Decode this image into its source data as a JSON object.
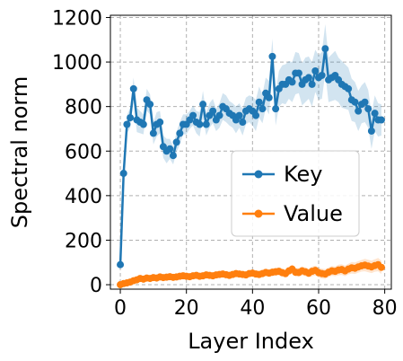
{
  "chart_data": {
    "type": "line",
    "title": "",
    "xlabel": "Layer Index",
    "ylabel": "Spectral norm",
    "xlim": [
      -3,
      82
    ],
    "ylim": [
      -20,
      1210
    ],
    "xticks": [
      0,
      20,
      40,
      60,
      80
    ],
    "yticks": [
      0,
      200,
      400,
      600,
      800,
      1000,
      1200
    ],
    "grid": true,
    "legend_position": "center-right",
    "x": [
      0,
      1,
      2,
      3,
      4,
      5,
      6,
      7,
      8,
      9,
      10,
      11,
      12,
      13,
      14,
      15,
      16,
      17,
      18,
      19,
      20,
      21,
      22,
      23,
      24,
      25,
      26,
      27,
      28,
      29,
      30,
      31,
      32,
      33,
      34,
      35,
      36,
      37,
      38,
      39,
      40,
      41,
      42,
      43,
      44,
      45,
      46,
      47,
      48,
      49,
      50,
      51,
      52,
      53,
      54,
      55,
      56,
      57,
      58,
      59,
      60,
      61,
      62,
      63,
      64,
      65,
      66,
      67,
      68,
      69,
      70,
      71,
      72,
      73,
      74,
      75,
      76,
      77,
      78,
      79
    ],
    "series": [
      {
        "name": "Key",
        "color": "#1f77b4",
        "values": [
          90,
          500,
          720,
          750,
          880,
          740,
          730,
          720,
          830,
          810,
          680,
          720,
          730,
          620,
          600,
          610,
          580,
          640,
          680,
          720,
          720,
          740,
          760,
          730,
          720,
          810,
          720,
          760,
          780,
          740,
          760,
          800,
          790,
          770,
          760,
          740,
          760,
          730,
          780,
          790,
          780,
          760,
          820,
          790,
          860,
          840,
          1025,
          790,
          880,
          900,
          900,
          920,
          910,
          950,
          950,
          900,
          920,
          930,
          900,
          960,
          930,
          940,
          1060,
          920,
          930,
          940,
          920,
          900,
          890,
          880,
          830,
          820,
          780,
          810,
          820,
          790,
          690,
          770,
          740,
          740
        ],
        "band": [
          20,
          30,
          40,
          45,
          50,
          55,
          50,
          45,
          50,
          45,
          50,
          55,
          50,
          50,
          55,
          45,
          40,
          45,
          50,
          45,
          45,
          40,
          45,
          50,
          55,
          60,
          50,
          55,
          55,
          50,
          55,
          60,
          60,
          55,
          55,
          60,
          55,
          60,
          60,
          60,
          65,
          70,
          70,
          65,
          70,
          75,
          80,
          75,
          80,
          85,
          90,
          85,
          90,
          95,
          90,
          95,
          100,
          95,
          100,
          95,
          100,
          105,
          110,
          100,
          105,
          110,
          100,
          105,
          100,
          95,
          95,
          90,
          90,
          85,
          90,
          85,
          80,
          80,
          75,
          70
        ]
      },
      {
        "name": "Value",
        "color": "#ff7f0e",
        "values": [
          0,
          5,
          8,
          12,
          18,
          22,
          28,
          25,
          30,
          28,
          32,
          30,
          35,
          32,
          34,
          36,
          33,
          35,
          38,
          40,
          38,
          36,
          40,
          42,
          38,
          40,
          44,
          42,
          40,
          44,
          46,
          48,
          45,
          42,
          46,
          50,
          48,
          46,
          44,
          50,
          52,
          48,
          46,
          50,
          55,
          52,
          56,
          58,
          60,
          54,
          50,
          62,
          70,
          56,
          55,
          62,
          58,
          52,
          60,
          64,
          54,
          50,
          48,
          56,
          62,
          60,
          66,
          68,
          62,
          70,
          76,
          74,
          80,
          85,
          88,
          84,
          80,
          86,
          90,
          78
        ],
        "band": [
          5,
          6,
          7,
          8,
          9,
          10,
          10,
          10,
          10,
          10,
          10,
          10,
          10,
          10,
          10,
          10,
          10,
          10,
          10,
          12,
          12,
          12,
          12,
          12,
          12,
          12,
          12,
          12,
          12,
          12,
          14,
          14,
          14,
          14,
          14,
          14,
          14,
          14,
          14,
          14,
          16,
          16,
          16,
          16,
          16,
          16,
          18,
          18,
          18,
          18,
          18,
          18,
          20,
          20,
          20,
          20,
          20,
          20,
          22,
          22,
          22,
          22,
          22,
          22,
          22,
          22,
          24,
          24,
          24,
          24,
          26,
          26,
          26,
          26,
          28,
          28,
          28,
          28,
          30,
          30
        ]
      }
    ]
  }
}
